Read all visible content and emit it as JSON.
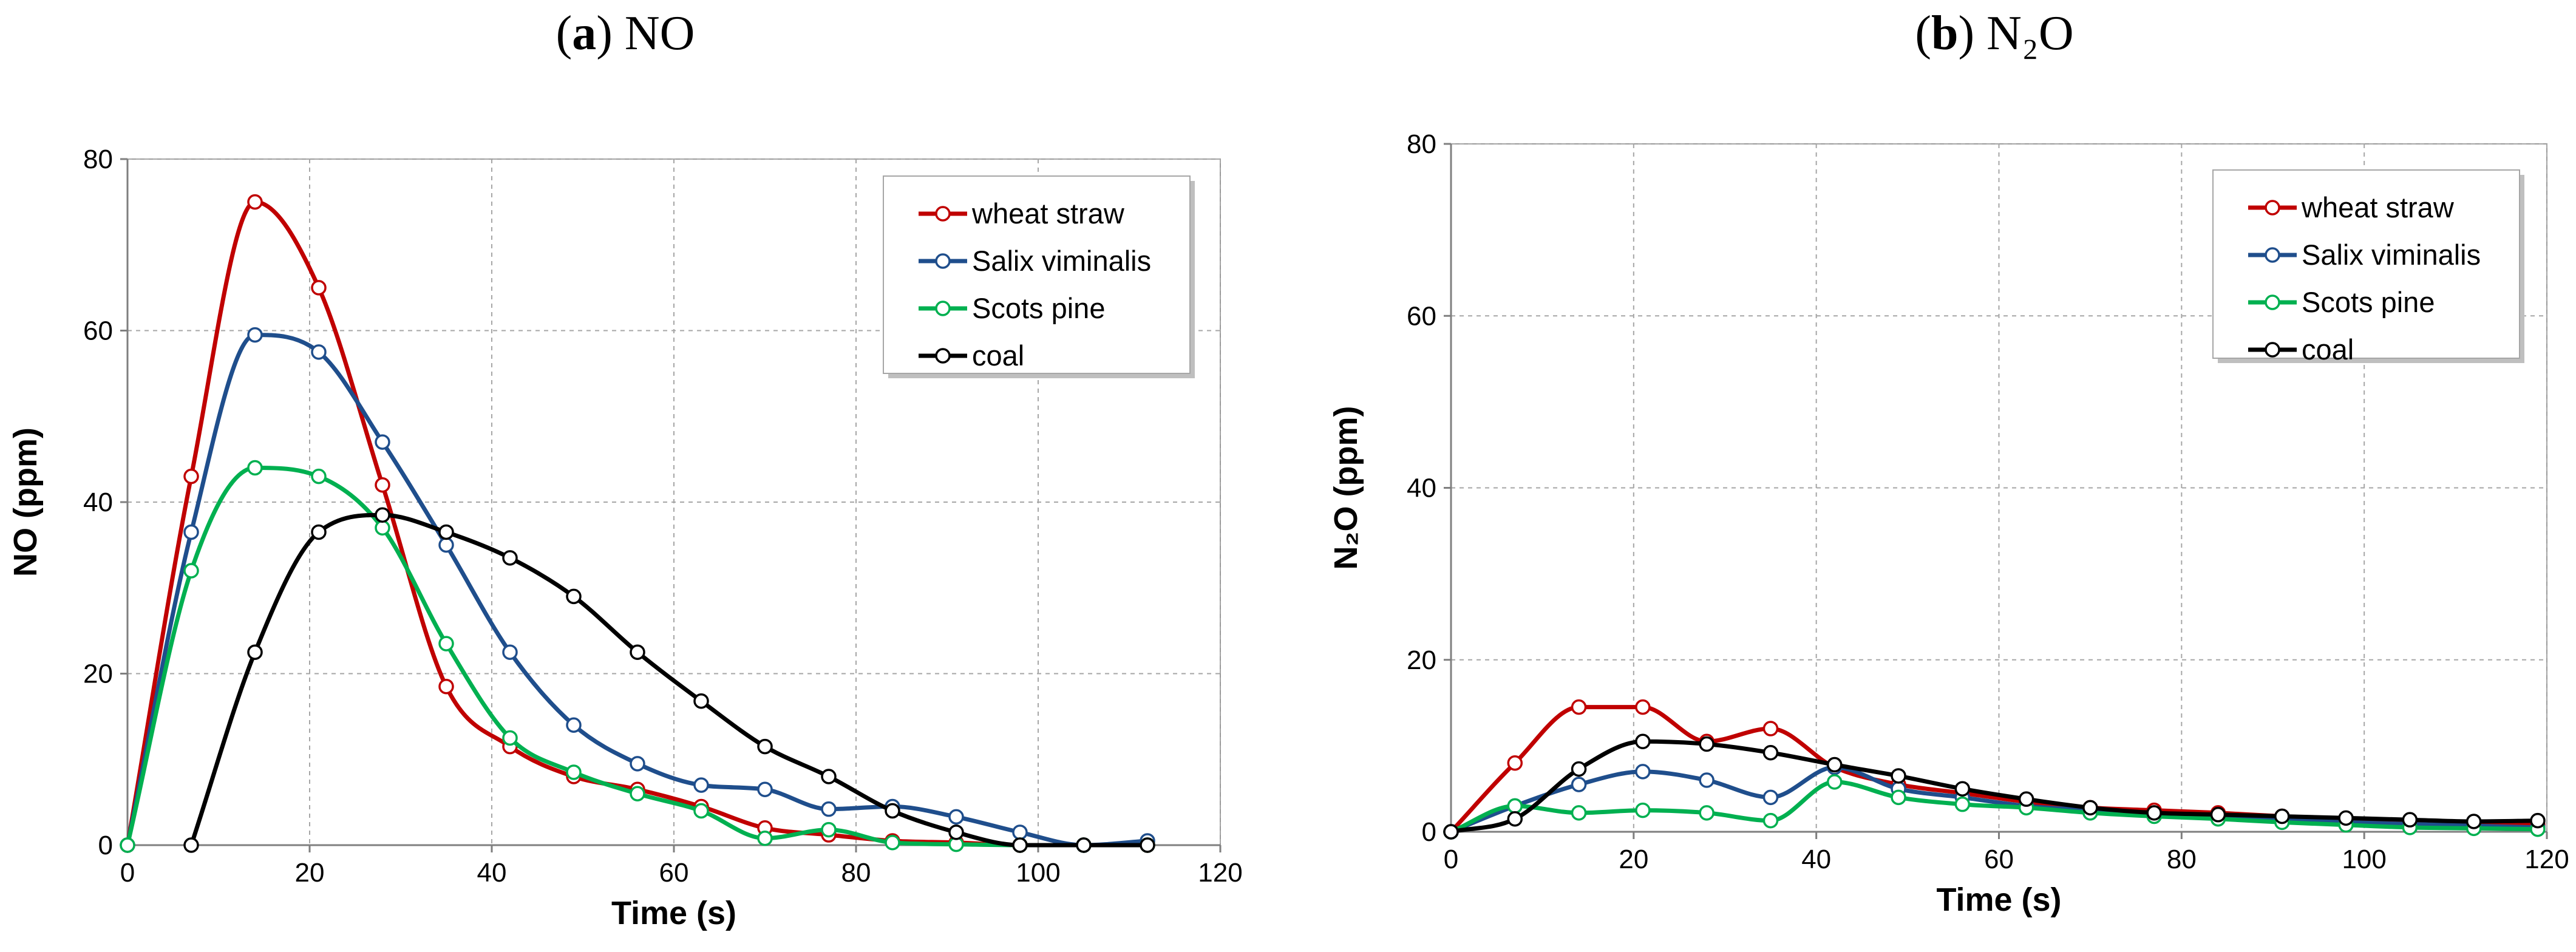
{
  "figure": {
    "panel_a": {
      "letter": "a",
      "title": "NO"
    },
    "panel_b": {
      "letter": "b",
      "title": "N₂O"
    }
  },
  "colors": {
    "wheat straw": "#C00000",
    "Salix viminalis": "#1F4E8C",
    "Scots pine": "#00B050",
    "coal": "#000000"
  },
  "chart_data": [
    {
      "type": "line",
      "title": "(a) NO",
      "xlabel": "Time (s)",
      "ylabel": "NO (ppm)",
      "xlim": [
        0,
        120
      ],
      "ylim": [
        0,
        80
      ],
      "xticks": [
        0,
        20,
        40,
        60,
        80,
        100,
        120
      ],
      "yticks": [
        0,
        20,
        40,
        60,
        80
      ],
      "grid": true,
      "legend": "top-right",
      "series": [
        {
          "name": "wheat straw",
          "x": [
            0,
            7,
            14,
            21,
            28,
            35,
            42,
            49,
            56,
            63,
            70,
            77,
            84,
            91,
            98,
            105,
            112
          ],
          "y": [
            0,
            43,
            75,
            65,
            42,
            18.5,
            11.5,
            8,
            6.5,
            4.5,
            2,
            1.2,
            0.5,
            0.3,
            0,
            0,
            0
          ]
        },
        {
          "name": "Salix viminalis",
          "x": [
            0,
            7,
            14,
            21,
            28,
            35,
            42,
            49,
            56,
            63,
            70,
            77,
            84,
            91,
            98,
            105,
            112
          ],
          "y": [
            0,
            36.5,
            59.5,
            57.5,
            47,
            35,
            22.5,
            14,
            9.5,
            7,
            6.5,
            4.2,
            4.5,
            3.3,
            1.5,
            0,
            0.5
          ]
        },
        {
          "name": "Scots pine",
          "x": [
            0,
            7,
            14,
            21,
            28,
            35,
            42,
            49,
            56,
            63,
            70,
            77,
            84,
            91,
            98,
            105,
            112
          ],
          "y": [
            0,
            32,
            44,
            43,
            37,
            23.5,
            12.5,
            8.5,
            6,
            4,
            0.8,
            1.8,
            0.3,
            0.1,
            0,
            0,
            0
          ]
        },
        {
          "name": "coal",
          "x": [
            7,
            14,
            21,
            28,
            35,
            42,
            49,
            56,
            63,
            70,
            77,
            84,
            91,
            98,
            105,
            112
          ],
          "y": [
            0,
            22.5,
            36.5,
            38.5,
            36.5,
            33.5,
            29,
            22.5,
            16.8,
            11.5,
            8,
            4,
            1.5,
            0,
            0,
            0
          ]
        }
      ]
    },
    {
      "type": "line",
      "title": "(b) N₂O",
      "xlabel": "Time (s)",
      "ylabel": "N₂O (ppm)",
      "xlim": [
        0,
        120
      ],
      "ylim": [
        0,
        80
      ],
      "xticks": [
        0,
        20,
        40,
        60,
        80,
        100,
        120
      ],
      "yticks": [
        0,
        20,
        40,
        60,
        80
      ],
      "grid": true,
      "legend": "top-right",
      "series": [
        {
          "name": "wheat straw",
          "x": [
            0,
            7,
            14,
            21,
            28,
            35,
            42,
            49,
            56,
            63,
            70,
            77,
            84,
            91,
            98,
            105,
            112,
            119
          ],
          "y": [
            0,
            8,
            14.5,
            14.5,
            10.5,
            12,
            7.5,
            5.5,
            4.5,
            3.5,
            2.8,
            2.5,
            2.2,
            1.8,
            1.5,
            1.2,
            1,
            0.8
          ]
        },
        {
          "name": "Salix viminalis",
          "x": [
            0,
            7,
            14,
            21,
            28,
            35,
            42,
            49,
            56,
            63,
            70,
            77,
            84,
            91,
            98,
            105,
            112,
            119
          ],
          "y": [
            0,
            3,
            5.5,
            7,
            6,
            4,
            7.5,
            5,
            4,
            3,
            2.5,
            2,
            1.7,
            1.4,
            1.1,
            0.9,
            0.7,
            0.5
          ]
        },
        {
          "name": "Scots pine",
          "x": [
            0,
            7,
            14,
            21,
            28,
            35,
            42,
            49,
            56,
            63,
            70,
            77,
            84,
            91,
            98,
            105,
            112,
            119
          ],
          "y": [
            0,
            3,
            2.2,
            2.5,
            2.2,
            1.3,
            5.8,
            4,
            3.2,
            2.8,
            2.2,
            1.8,
            1.5,
            1.1,
            0.8,
            0.5,
            0.4,
            0.3
          ]
        },
        {
          "name": "coal",
          "x": [
            0,
            7,
            14,
            21,
            28,
            35,
            42,
            49,
            56,
            63,
            70,
            77,
            84,
            91,
            98,
            105,
            112,
            119
          ],
          "y": [
            0,
            1.5,
            7.3,
            10.5,
            10.2,
            9.2,
            7.8,
            6.5,
            5,
            3.8,
            2.8,
            2.2,
            2,
            1.8,
            1.6,
            1.4,
            1.2,
            1.3
          ]
        }
      ]
    }
  ]
}
